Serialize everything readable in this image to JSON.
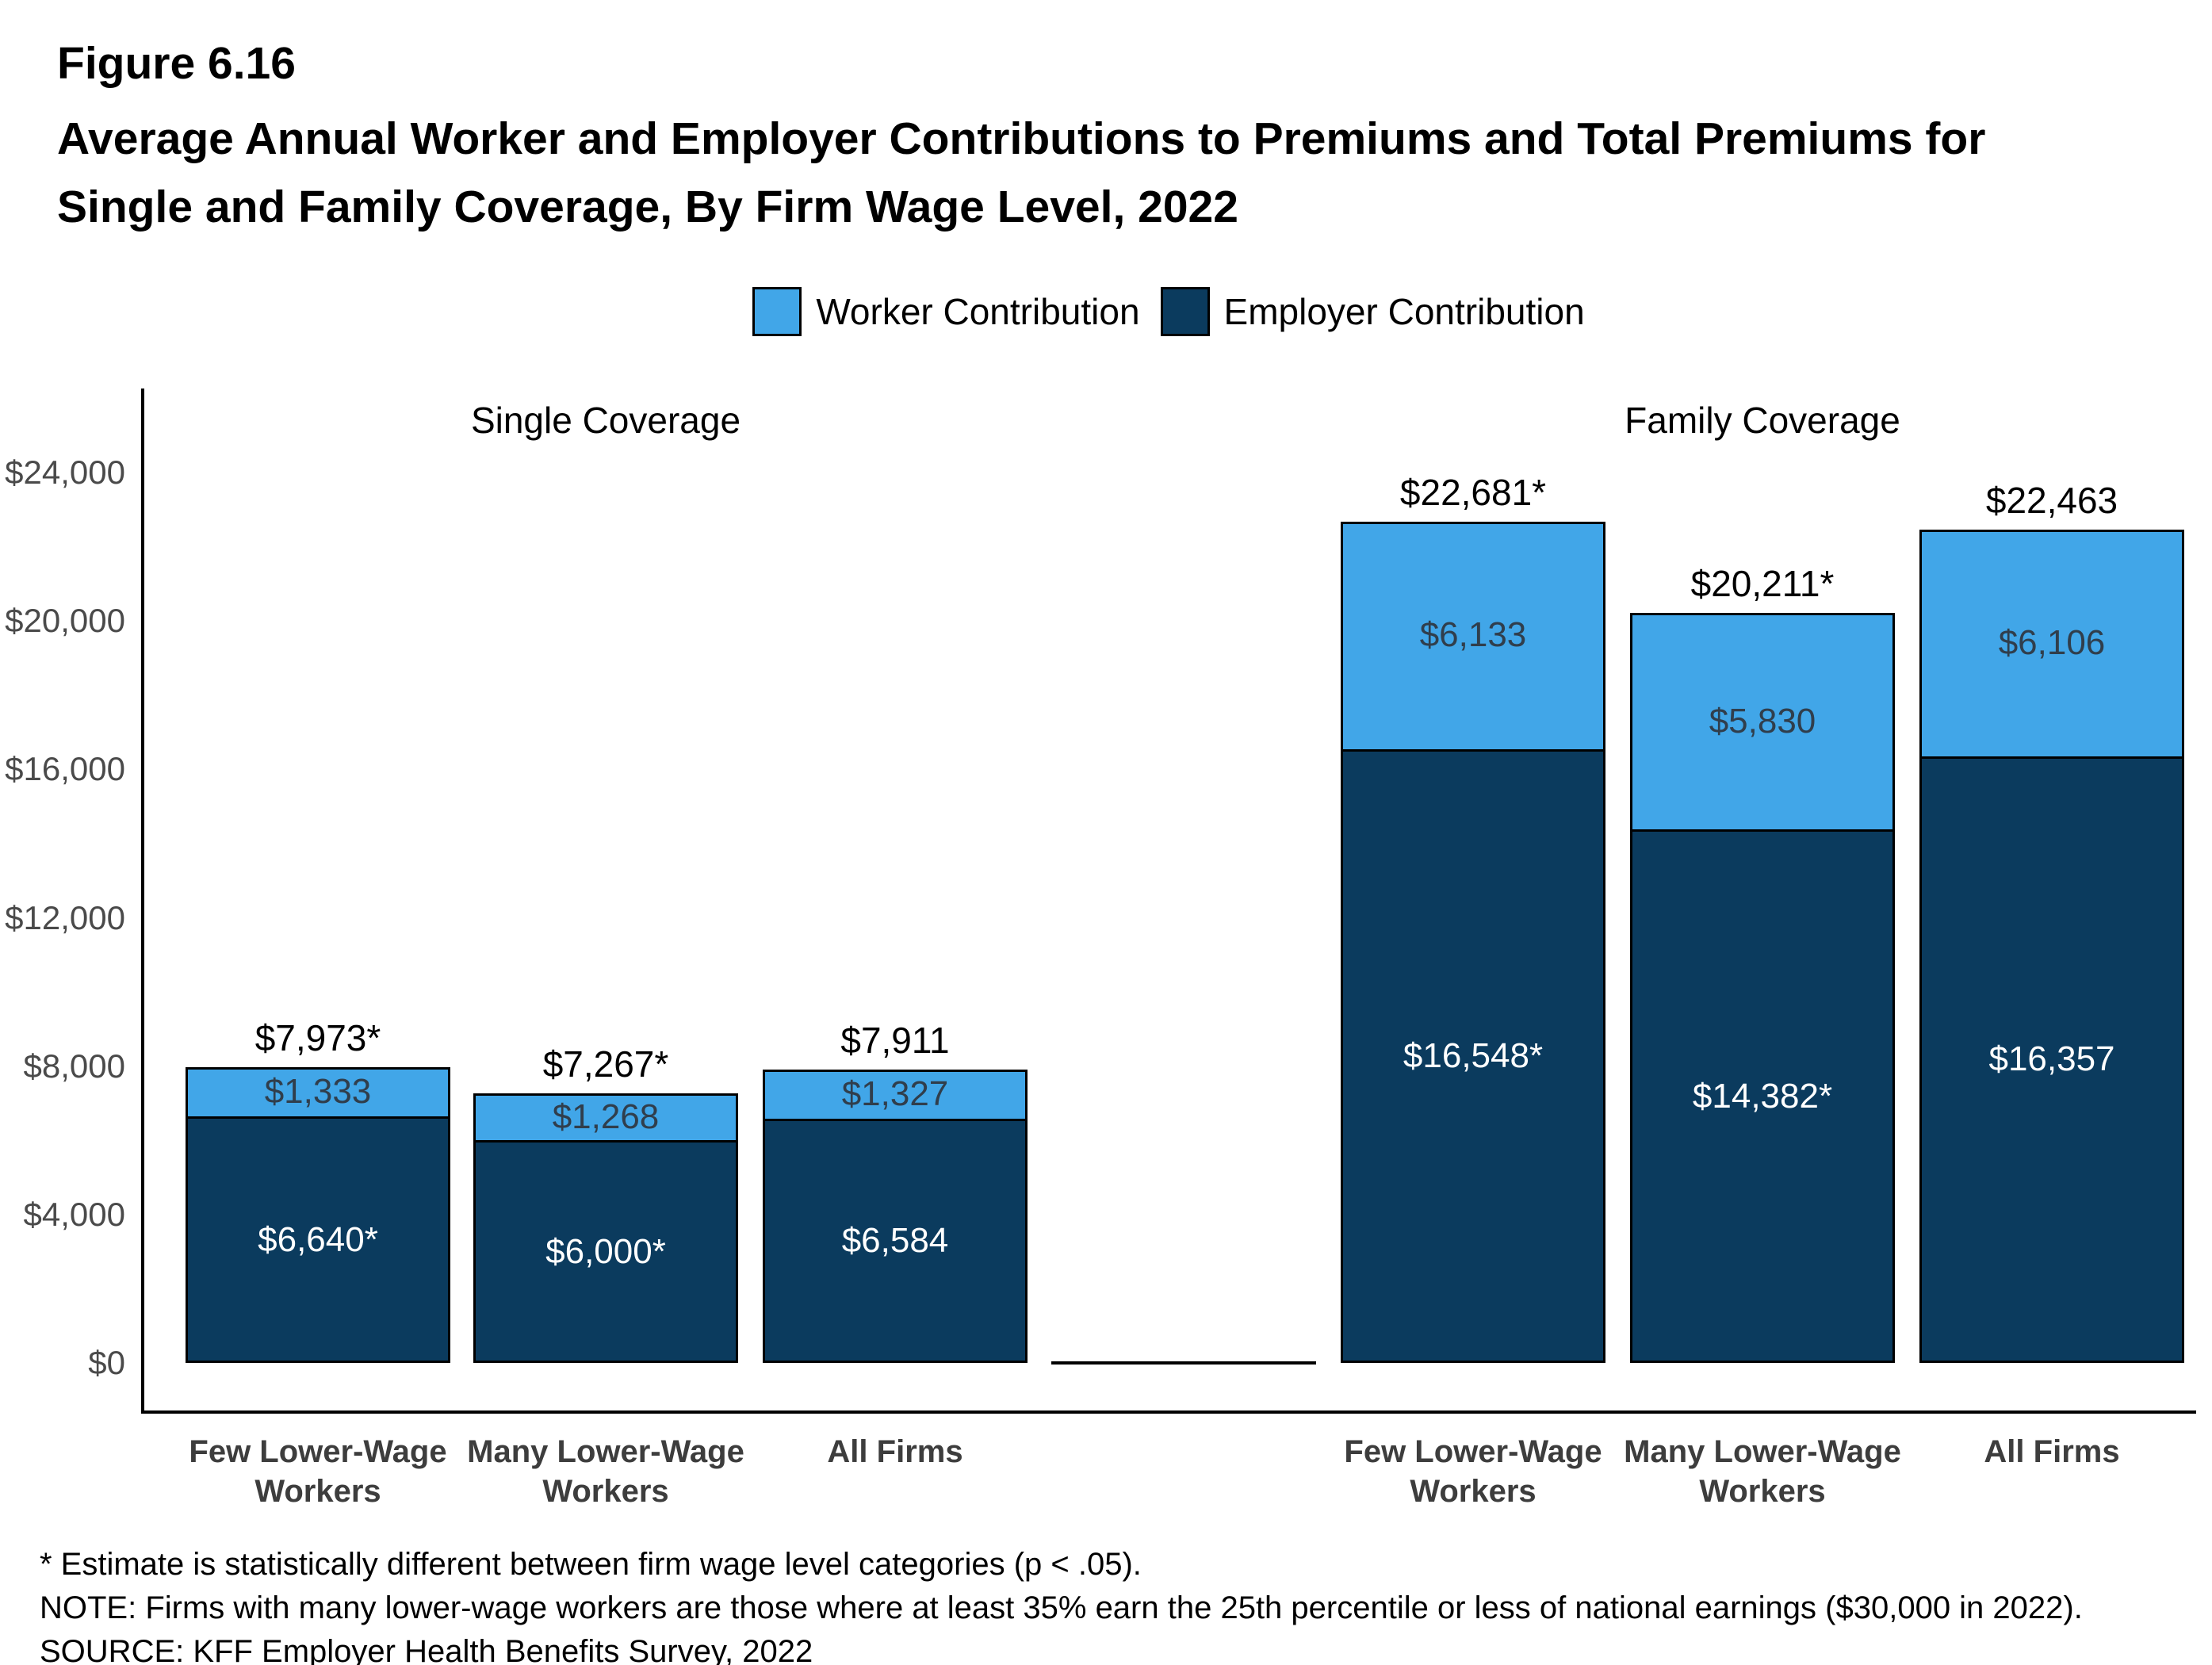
{
  "header": {
    "figure_label": "Figure 6.16",
    "title_line1": "Average Annual Worker and Employer Contributions to Premiums and Total Premiums for",
    "title_line2": "Single and Family Coverage, By Firm Wage Level, 2022"
  },
  "chart_data": {
    "type": "bar",
    "stacked": true,
    "grid": false,
    "legend_position": "top",
    "series": [
      {
        "name": "Worker Contribution",
        "color": "#41A6E8"
      },
      {
        "name": "Employer Contribution",
        "color": "#0B3B5E"
      }
    ],
    "y_axis": {
      "min": 0,
      "max": 24000,
      "tick_step": 4000,
      "tick_labels": [
        "$0",
        "$4,000",
        "$8,000",
        "$12,000",
        "$16,000",
        "$20,000",
        "$24,000"
      ]
    },
    "groups": [
      {
        "title": "Single Coverage",
        "bars": [
          {
            "category_lines": [
              "Few Lower-Wage",
              "Workers"
            ],
            "worker": 1333,
            "employer": 6640,
            "total": 7973,
            "worker_label": "$1,333",
            "employer_label": "$6,640*",
            "total_label": "$7,973*"
          },
          {
            "category_lines": [
              "Many Lower-Wage",
              "Workers"
            ],
            "worker": 1268,
            "employer": 6000,
            "total": 7267,
            "worker_label": "$1,268",
            "employer_label": "$6,000*",
            "total_label": "$7,267*"
          },
          {
            "category_lines": [
              "All Firms"
            ],
            "worker": 1327,
            "employer": 6584,
            "total": 7911,
            "worker_label": "$1,327",
            "employer_label": "$6,584",
            "total_label": "$7,911"
          }
        ]
      },
      {
        "title": "Family Coverage",
        "bars": [
          {
            "category_lines": [
              "Few Lower-Wage",
              "Workers"
            ],
            "worker": 6133,
            "employer": 16548,
            "total": 22681,
            "worker_label": "$6,133",
            "employer_label": "$16,548*",
            "total_label": "$22,681*"
          },
          {
            "category_lines": [
              "Many Lower-Wage",
              "Workers"
            ],
            "worker": 5830,
            "employer": 14382,
            "total": 20211,
            "worker_label": "$5,830",
            "employer_label": "$14,382*",
            "total_label": "$20,211*"
          },
          {
            "category_lines": [
              "All Firms"
            ],
            "worker": 6106,
            "employer": 16357,
            "total": 22463,
            "worker_label": "$6,106",
            "employer_label": "$16,357",
            "total_label": "$22,463"
          }
        ]
      }
    ]
  },
  "footnotes": [
    "* Estimate is statistically different between firm wage level categories (p < .05).",
    "NOTE: Firms with many lower-wage workers are those where at least 35% earn the 25th percentile or less of national earnings ($30,000 in 2022).",
    "SOURCE: KFF Employer Health Benefits Survey, 2022"
  ]
}
